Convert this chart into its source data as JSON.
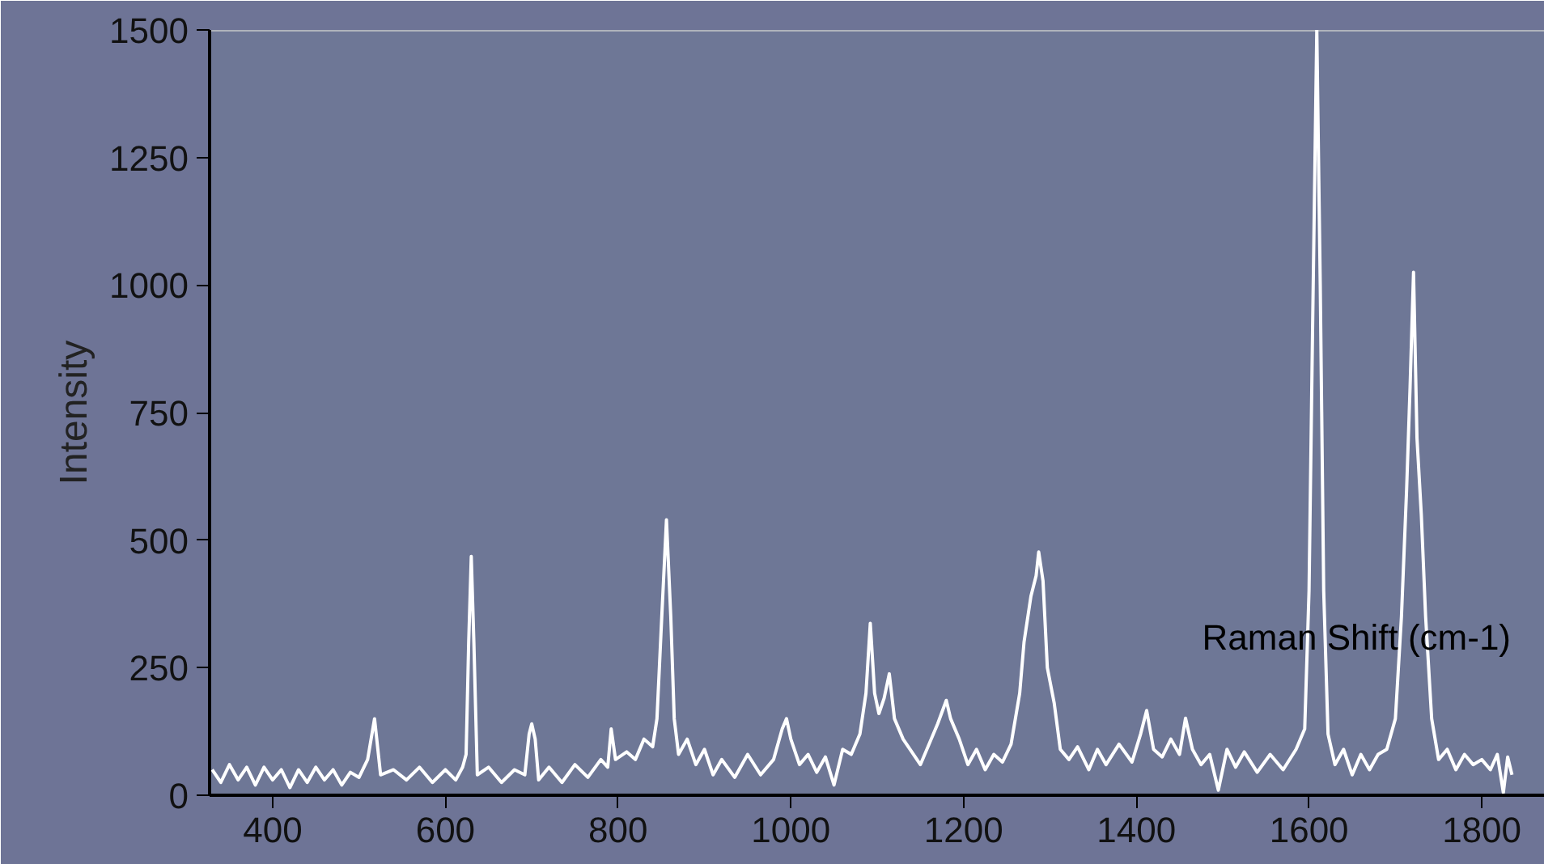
{
  "chart_data": {
    "type": "line",
    "xlabel": "Raman Shift (cm-1)",
    "ylabel": "Intensity",
    "xlim": [
      327,
      1873
    ],
    "xticks": [
      400,
      600,
      800,
      1000,
      1200,
      1400,
      1600,
      1800
    ],
    "ylim": [
      0,
      1500
    ],
    "yticks": [
      0,
      250,
      500,
      750,
      1000,
      1250,
      1500
    ],
    "grid": false,
    "marker": "none",
    "line_style": "solid",
    "series": [
      {
        "color": "#ffffff",
        "x": [
          330,
          340,
          350,
          360,
          370,
          380,
          390,
          400,
          410,
          420,
          430,
          440,
          450,
          460,
          470,
          480,
          490,
          500,
          510,
          518,
          525,
          540,
          555,
          570,
          585,
          600,
          612,
          620,
          624,
          627,
          630,
          633,
          637,
          650,
          665,
          680,
          692,
          697,
          700,
          704,
          708,
          720,
          735,
          750,
          765,
          780,
          788,
          792,
          797,
          810,
          820,
          830,
          840,
          845,
          850,
          856,
          861,
          865,
          870,
          880,
          890,
          900,
          910,
          920,
          935,
          950,
          965,
          980,
          990,
          995,
          1000,
          1010,
          1020,
          1030,
          1040,
          1050,
          1060,
          1070,
          1080,
          1087,
          1092,
          1097,
          1102,
          1108,
          1114,
          1120,
          1130,
          1140,
          1150,
          1160,
          1170,
          1180,
          1185,
          1195,
          1205,
          1215,
          1225,
          1235,
          1245,
          1255,
          1265,
          1270,
          1278,
          1284,
          1287,
          1292,
          1297,
          1305,
          1312,
          1322,
          1332,
          1345,
          1355,
          1365,
          1380,
          1395,
          1405,
          1412,
          1420,
          1430,
          1440,
          1450,
          1457,
          1465,
          1475,
          1485,
          1495,
          1505,
          1515,
          1525,
          1540,
          1555,
          1570,
          1585,
          1595,
          1600,
          1604,
          1609,
          1613,
          1617,
          1622,
          1630,
          1640,
          1650,
          1660,
          1670,
          1680,
          1690,
          1700,
          1707,
          1713,
          1717,
          1721,
          1725,
          1730,
          1735,
          1742,
          1750,
          1760,
          1770,
          1780,
          1790,
          1800,
          1810,
          1818,
          1825,
          1830,
          1835
        ],
        "values": [
          50,
          25,
          60,
          30,
          55,
          20,
          55,
          30,
          50,
          15,
          50,
          25,
          55,
          30,
          50,
          20,
          45,
          35,
          70,
          150,
          40,
          50,
          30,
          55,
          25,
          50,
          30,
          55,
          80,
          300,
          468,
          300,
          40,
          55,
          25,
          50,
          40,
          120,
          140,
          110,
          30,
          55,
          25,
          60,
          35,
          70,
          55,
          130,
          70,
          85,
          70,
          110,
          95,
          150,
          330,
          540,
          350,
          150,
          80,
          110,
          60,
          90,
          40,
          70,
          35,
          80,
          40,
          70,
          130,
          150,
          110,
          60,
          80,
          45,
          75,
          20,
          90,
          80,
          120,
          200,
          337,
          200,
          160,
          190,
          238,
          150,
          110,
          85,
          60,
          100,
          140,
          186,
          150,
          110,
          60,
          90,
          50,
          80,
          65,
          100,
          200,
          300,
          390,
          430,
          477,
          420,
          250,
          180,
          90,
          70,
          95,
          50,
          90,
          60,
          100,
          65,
          120,
          166,
          90,
          75,
          110,
          80,
          151,
          90,
          60,
          80,
          10,
          90,
          55,
          85,
          45,
          80,
          50,
          90,
          130,
          400,
          900,
          1500,
          1000,
          400,
          120,
          60,
          90,
          40,
          80,
          50,
          80,
          90,
          150,
          350,
          600,
          800,
          1025,
          700,
          550,
          350,
          150,
          70,
          90,
          50,
          80,
          60,
          70,
          50,
          80,
          5,
          75,
          40
        ]
      }
    ]
  }
}
